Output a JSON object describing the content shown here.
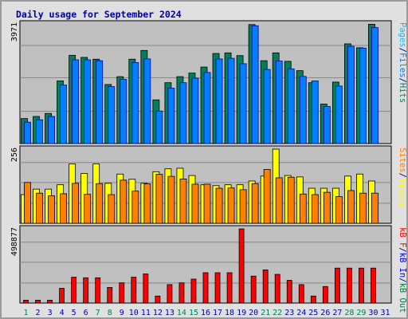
{
  "title": "Daily usage for September 2024",
  "colors": {
    "background": "#e0e0e0",
    "plot_bg": "#c0c0c0",
    "title": "#0000a0",
    "hits": "#00805c",
    "files": "#0080ff",
    "files_edge": "#0000a0",
    "sites": "#ff8000",
    "visits": "#ffff00",
    "kbf": "#ff0000",
    "kbin": "#0000ff",
    "kbout": "#008040",
    "weekend_label": "#00805c",
    "weekday_label": "#0000a0"
  },
  "chart_data": {
    "type": "bar",
    "title": "Daily usage for September 2024",
    "x": [
      "1",
      "2",
      "3",
      "4",
      "5",
      "6",
      "7",
      "8",
      "9",
      "10",
      "11",
      "12",
      "13",
      "14",
      "15",
      "16",
      "17",
      "18",
      "19",
      "20",
      "21",
      "22",
      "23",
      "24",
      "25",
      "26",
      "27",
      "28",
      "29",
      "30",
      "31"
    ],
    "weekend_days": [
      "1",
      "7",
      "8",
      "14",
      "15",
      "21",
      "22",
      "28",
      "29"
    ],
    "panels": [
      {
        "name": "hits-files-pages",
        "ymax": 3971,
        "ymax_label": "3971",
        "legend": [
          {
            "text": "Pages",
            "color": "#00c0ff"
          },
          {
            "text": "/",
            "color": "#0000a0"
          },
          {
            "text": "Files",
            "color": "#0080ff"
          },
          {
            "text": "/",
            "color": "#0000a0"
          },
          {
            "text": "Hits",
            "color": "#00805c"
          }
        ],
        "series": [
          {
            "name": "Hits",
            "values": [
              830,
              900,
              1000,
              2080,
              2930,
              2860,
              2800,
              1960,
              2220,
              2800,
              3090,
              1450,
              2020,
              2220,
              2340,
              2540,
              2990,
              3010,
              2920,
              3950,
              2750,
              3010,
              2730,
              2420,
              2020,
              1310,
              2040,
              3310,
              3180,
              3960,
              null
            ]
          },
          {
            "name": "Files",
            "values": [
              710,
              790,
              900,
              1940,
              2780,
              2780,
              2750,
              1890,
              2130,
              2690,
              2810,
              1080,
              1840,
              2020,
              2170,
              2360,
              2810,
              2830,
              2650,
              3910,
              2460,
              2740,
              2480,
              2230,
              2080,
              1230,
              1910,
              3230,
              3170,
              3850,
              null
            ]
          }
        ]
      },
      {
        "name": "visits-sites",
        "ymax": 256,
        "ymax_label": "256",
        "legend": [
          {
            "text": "Sites",
            "color": "#ff8000"
          },
          {
            "text": "/",
            "color": "#0000a0"
          },
          {
            "text": "Visits",
            "color": "#ffff00"
          }
        ],
        "series": [
          {
            "name": "Visits",
            "values": [
              99,
              118,
              118,
              133,
              205,
              172,
              205,
              138,
              170,
              152,
              138,
              178,
              188,
              190,
              165,
              133,
              130,
              133,
              133,
              146,
              163,
              256,
              165,
              160,
              121,
              121,
              121,
              163,
              170,
              146,
              null
            ]
          },
          {
            "name": "Sites",
            "values": [
              141,
              104,
              95,
              102,
              138,
              100,
              137,
              99,
              149,
              111,
              136,
              169,
              162,
              153,
              135,
              135,
              121,
              122,
              116,
              137,
              186,
              157,
              159,
              101,
              99,
              107,
              92,
              113,
              104,
              104,
              null
            ]
          }
        ]
      },
      {
        "name": "kbf-in-out",
        "ymax": 498877,
        "ymax_label": "498877",
        "legend": [
          {
            "text": "kB F",
            "color": "#ff0000"
          },
          {
            "text": "/",
            "color": "#0000a0"
          },
          {
            "text": "kB In",
            "color": "#0000ff"
          },
          {
            "text": "/",
            "color": "#0000a0"
          },
          {
            "text": "kB Out",
            "color": "#008040"
          }
        ],
        "series": [
          {
            "name": "kB F",
            "values": [
              19000,
              19000,
              19000,
              99000,
              174000,
              170000,
              170000,
              105000,
              136000,
              174000,
              196000,
              47000,
              124000,
              136000,
              161000,
              204000,
              204000,
              204000,
              498877,
              181000,
              223000,
              193000,
              153000,
              124000,
              47000,
              111000,
              235000,
              235000,
              235000,
              235000,
              null
            ]
          }
        ]
      }
    ]
  }
}
